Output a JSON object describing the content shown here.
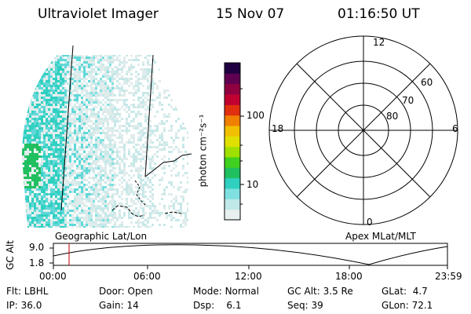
{
  "header": {
    "title": "Ultraviolet Imager",
    "date": "15 Nov 07",
    "time": "01:16:50 UT"
  },
  "colorbar": {
    "unit_label": "photon cm⁻²s⁻¹",
    "ticks": [
      "100",
      "10"
    ],
    "colors": [
      "#e8f0f0",
      "#c0e8e8",
      "#80e0e0",
      "#30d0c0",
      "#20c060",
      "#40d020",
      "#a0e000",
      "#e0e000",
      "#f0c000",
      "#f08000",
      "#e03010",
      "#c00030",
      "#900040",
      "#600050",
      "#200040"
    ]
  },
  "polar": {
    "mlt_labels": {
      "top": "12",
      "left": "18",
      "right": "6",
      "bottom": "0"
    },
    "lat_labels": [
      "60",
      "70",
      "80"
    ]
  },
  "map_labels": {
    "left": "Geographic Lat/Lon",
    "right": "Apex MLat/MLT"
  },
  "altitude_plot": {
    "axis_title": "GC Alt",
    "y_ticks": [
      "9.0",
      "1.8"
    ],
    "x_ticks": [
      "00:00",
      "06:00",
      "12:00",
      "18:00",
      "23:59"
    ],
    "marker_time": "01:16"
  },
  "status": {
    "row1": [
      {
        "label": "Flt:",
        "value": "LBHL"
      },
      {
        "label": "Door:",
        "value": "Open"
      },
      {
        "label": "Mode:",
        "value": "Normal"
      },
      {
        "label": "GC Alt:",
        "value": "3.5 Re"
      },
      {
        "label": "GLat:",
        "value": "4.7"
      }
    ],
    "row2": [
      {
        "label": "IP:",
        "value": "36.0"
      },
      {
        "label": "Gain:",
        "value": "14"
      },
      {
        "label": "Dsp:",
        "value": "6.1"
      },
      {
        "label": "Seq:",
        "value": "39"
      },
      {
        "label": "GLon:",
        "value": "72.1"
      }
    ]
  }
}
